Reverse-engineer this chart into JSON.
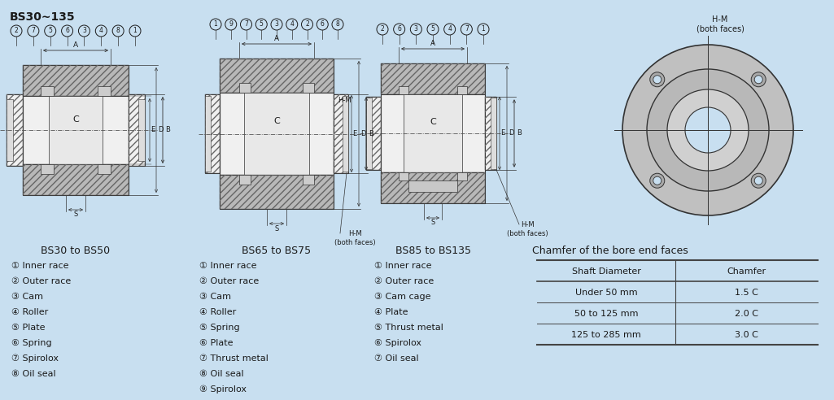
{
  "bg_color": "#c8dff0",
  "title": "BS30∼135",
  "title_fontsize": 10,
  "col1_title": "BS30 to BS50",
  "col2_title": "BS65 to BS75",
  "col3_title": "BS85 to BS135",
  "col4_title": "Chamfer of the bore end faces",
  "col1_items": [
    "① Inner race",
    "② Outer race",
    "③ Cam",
    "④ Roller",
    "⑤ Plate",
    "⑥ Spring",
    "⑦ Spirolox",
    "⑧ Oil seal"
  ],
  "col2_items": [
    "① Inner race",
    "② Outer race",
    "③ Cam",
    "④ Roller",
    "⑤ Spring",
    "⑥ Plate",
    "⑦ Thrust metal",
    "⑧ Oil seal",
    "⑨ Spirolox"
  ],
  "col3_items": [
    "① Inner race",
    "② Outer race",
    "③ Cam cage",
    "④ Plate",
    "⑤ Thrust metal",
    "⑥ Spirolox",
    "⑦ Oil seal"
  ],
  "table_header": [
    "Shaft Diameter",
    "Chamfer"
  ],
  "table_rows": [
    [
      "Under 50 mm",
      "1.5 C"
    ],
    [
      "50 to 125 mm",
      "2.0 C"
    ],
    [
      "125 to 285 mm",
      "3.0 C"
    ]
  ],
  "font_color": "#1a1a1a",
  "line_color": "#333333",
  "metal_gray": "#b8b8b8",
  "hatch_gray": "#d0d0d0",
  "white_fill": "#f0f0f0",
  "dark_fill": "#888888"
}
